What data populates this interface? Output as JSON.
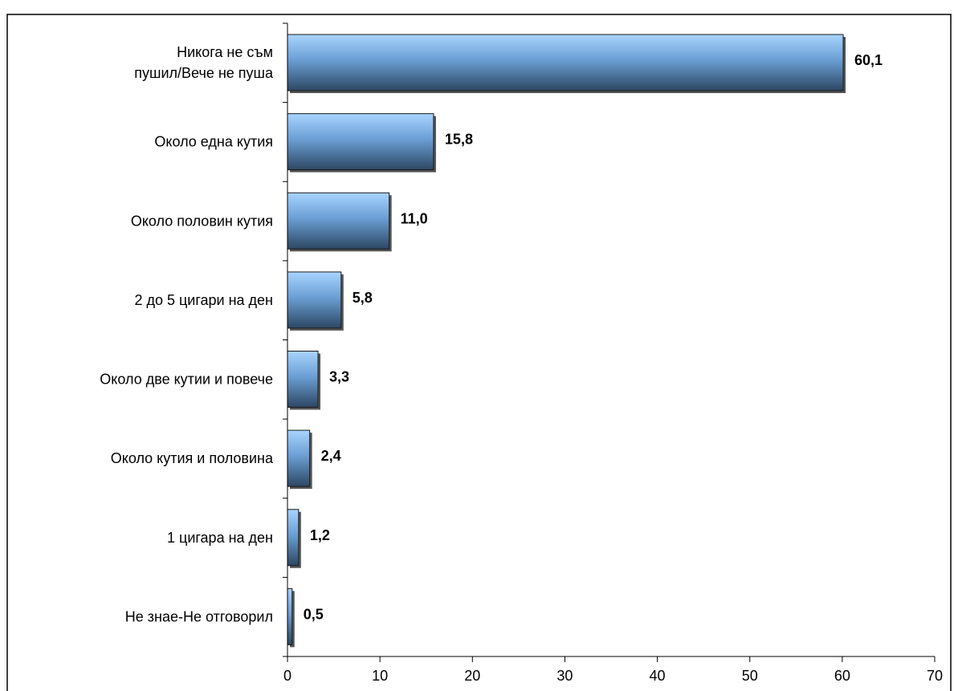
{
  "chart_data": {
    "type": "bar",
    "orientation": "horizontal",
    "title": "",
    "xlabel": "",
    "ylabel": "",
    "categories": [
      [
        "Никога не съм",
        "пушил/Вече не пуша"
      ],
      [
        "Около една кутия"
      ],
      [
        "Около половин кутия"
      ],
      [
        "2 до 5 цигари на ден"
      ],
      [
        "Около две кутии и повече"
      ],
      [
        "Около кутия и половина"
      ],
      [
        "1 цигара на ден"
      ],
      [
        "Не знае-Не отговорил"
      ]
    ],
    "values": [
      60.1,
      15.8,
      11.0,
      5.8,
      3.3,
      2.4,
      1.2,
      0.5
    ],
    "value_labels": [
      "60,1",
      "15,8",
      "11,0",
      "5,8",
      "3,3",
      "2,4",
      "1,2",
      "0,5"
    ],
    "xlim": [
      0,
      70
    ],
    "xticks": [
      0,
      10,
      20,
      30,
      40,
      50,
      60,
      70
    ],
    "xtick_labels": [
      "0",
      "10",
      "20",
      "30",
      "40",
      "50",
      "60",
      "70"
    ],
    "grid": false,
    "legend": "none",
    "colors": {
      "bar_light": "#a8d4ff",
      "bar_mid": "#6b9fd4",
      "bar_dark": "#2d4763",
      "bar_shadow": "#555555",
      "axis": "#000000"
    }
  }
}
